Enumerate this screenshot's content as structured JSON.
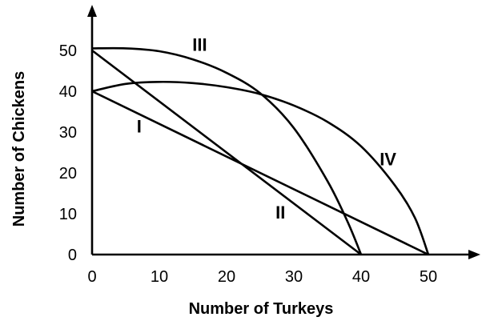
{
  "chart_data": {
    "type": "line",
    "xlabel": "Number of Turkeys",
    "ylabel": "Number of Chickens",
    "xlim": [
      0,
      50
    ],
    "ylim": [
      0,
      50
    ],
    "x_ticks": [
      "0",
      "10",
      "20",
      "30",
      "40",
      "50"
    ],
    "y_ticks": [
      "0",
      "10",
      "20",
      "30",
      "40",
      "50"
    ],
    "grid": false,
    "legend": "none",
    "series": [
      {
        "name": "I",
        "label_at": [
          7,
          31
        ],
        "x": [
          0,
          50
        ],
        "y": [
          40,
          0
        ]
      },
      {
        "name": "II",
        "label_at": [
          28,
          10
        ],
        "x": [
          0,
          40
        ],
        "y": [
          50,
          0
        ]
      },
      {
        "name": "III",
        "label_at": [
          16,
          51
        ],
        "x": [
          0,
          5,
          10,
          15,
          20,
          25,
          30,
          35,
          38,
          40
        ],
        "y": [
          50.5,
          50.5,
          49.8,
          47.8,
          44.5,
          39.5,
          31,
          18,
          8,
          0
        ]
      },
      {
        "name": "IV",
        "label_at": [
          44,
          23
        ],
        "x": [
          0,
          5,
          10,
          15,
          20,
          25,
          30,
          35,
          40,
          45,
          48,
          50
        ],
        "y": [
          40,
          41.8,
          42.3,
          42,
          41,
          39.3,
          36.5,
          32.5,
          26.5,
          17,
          9,
          0
        ]
      }
    ]
  }
}
